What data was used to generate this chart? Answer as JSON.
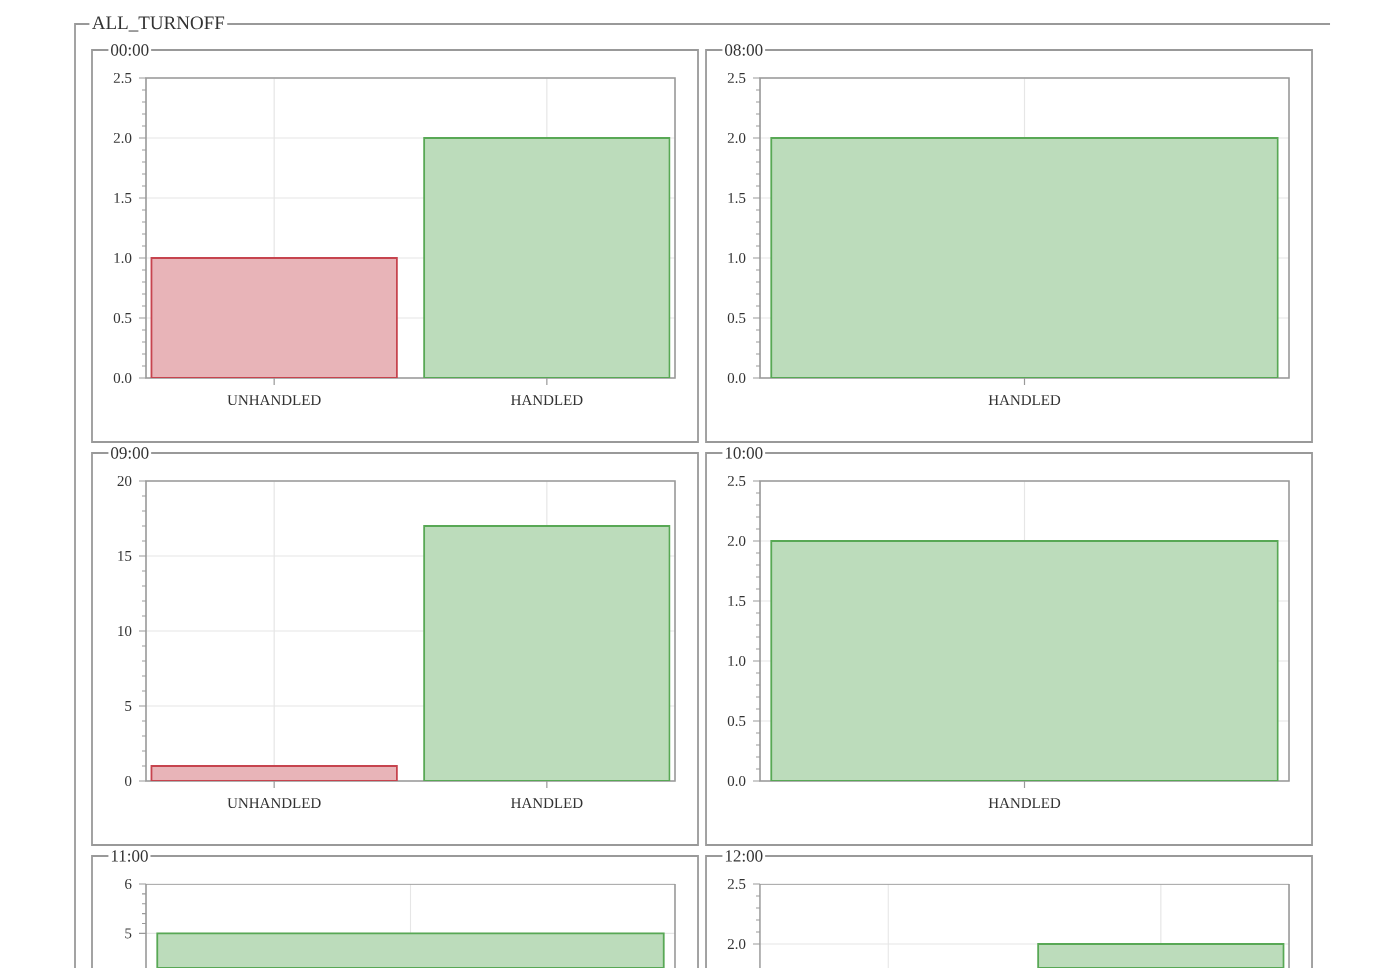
{
  "chart_data": [
    {
      "type": "other",
      "title": "ALL_TURNOFF"
    },
    {
      "type": "bar",
      "title": "00:00",
      "categories": [
        "UNHANDLED",
        "HANDLED"
      ],
      "values": [
        1,
        2
      ],
      "colors": [
        "#e8b4b8",
        "#bcdcbb"
      ],
      "ylim": [
        0,
        2.5
      ],
      "yticks": [
        {
          "value": 0,
          "label": "0.0"
        },
        0.5,
        {
          "value": 1,
          "label": "1.0"
        },
        1.5,
        {
          "value": 2,
          "label": "2.0"
        },
        2.5
      ],
      "grid": true
    },
    {
      "type": "bar",
      "title": "08:00",
      "categories": [
        "HANDLED"
      ],
      "values": [
        2
      ],
      "colors": [
        "#bcdcbb"
      ],
      "ylim": [
        0,
        2.5
      ],
      "yticks": [
        {
          "value": 0,
          "label": "0.0"
        },
        0.5,
        {
          "value": 1,
          "label": "1.0"
        },
        1.5,
        {
          "value": 2,
          "label": "2.0"
        },
        2.5
      ],
      "grid": true
    },
    {
      "type": "bar",
      "title": "09:00",
      "categories": [
        "UNHANDLED",
        "HANDLED"
      ],
      "values": [
        1,
        17
      ],
      "colors": [
        "#e8b4b8",
        "#bcdcbb"
      ],
      "ylim": [
        0,
        20
      ],
      "yticks": [
        0,
        5,
        10,
        15,
        20
      ],
      "grid": true
    },
    {
      "type": "bar",
      "title": "10:00",
      "categories": [
        "HANDLED"
      ],
      "values": [
        2
      ],
      "colors": [
        "#bcdcbb"
      ],
      "ylim": [
        0,
        2.5
      ],
      "yticks": [
        {
          "value": 0,
          "label": "0.0"
        },
        0.5,
        {
          "value": 1,
          "label": "1.0"
        },
        1.5,
        {
          "value": 2,
          "label": "2.0"
        },
        2.5
      ],
      "grid": true
    },
    {
      "type": "bar",
      "title": "11:00",
      "categories": [
        null
      ],
      "values": [
        5
      ],
      "colors": [
        "#bcdcbb"
      ],
      "ylim": [
        4.3,
        6
      ],
      "yticks": [
        5,
        6
      ],
      "grid": true
    },
    {
      "type": "bar",
      "title": "12:00",
      "categories": [
        null,
        null
      ],
      "values": [
        null,
        2
      ],
      "colors": [
        null,
        "#bcdcbb"
      ],
      "ylim": [
        1.8,
        2.5
      ],
      "yticks": [
        {
          "value": 2,
          "label": "2.0"
        },
        2.5
      ],
      "grid": true
    }
  ]
}
